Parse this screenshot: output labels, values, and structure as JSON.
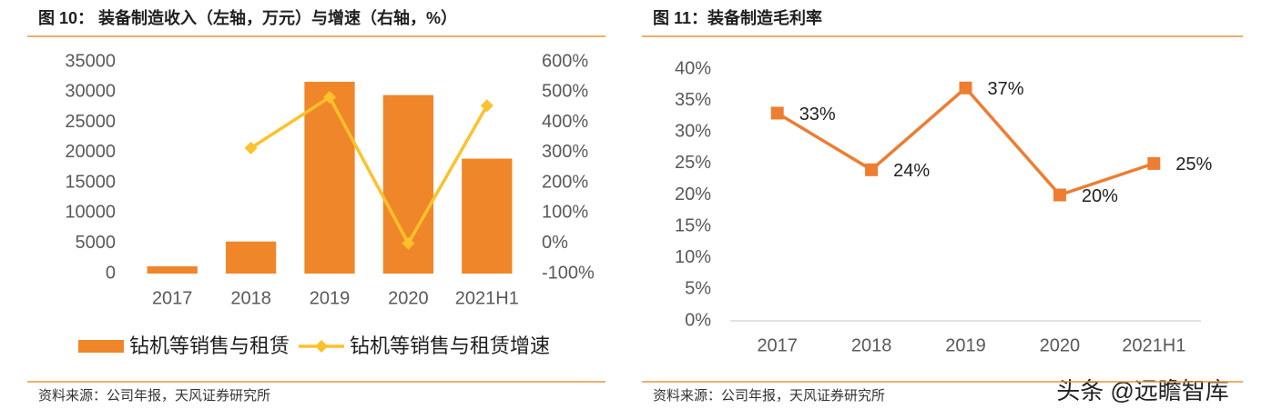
{
  "chart_data": [
    {
      "type": "combo",
      "title": "图 10： 装备制造收入（左轴，万元）与增速（右轴，%）",
      "categories": [
        "2017",
        "2018",
        "2019",
        "2020",
        "2021H1"
      ],
      "series": [
        {
          "name": "钻机等销售与租赁",
          "color": "#f0862a",
          "kind": "bar",
          "values": [
            1200,
            5300,
            31700,
            29500,
            19000
          ]
        },
        {
          "name": "钻机等销售与租赁增速",
          "color": "#fdc12b",
          "kind": "line",
          "axis": "y2",
          "values": [
            null,
            315,
            483,
            0,
            455
          ]
        }
      ],
      "ylim": [
        0,
        35000
      ],
      "yticks": [
        0,
        5000,
        10000,
        15000,
        20000,
        25000,
        30000,
        35000
      ],
      "y2lim": [
        -100,
        600
      ],
      "y2ticks": [
        {
          "value": -100,
          "label": "-100%"
        },
        {
          "value": 0,
          "label": "0%"
        },
        {
          "value": 100,
          "label": "100%"
        },
        {
          "value": 200,
          "label": "200%"
        },
        {
          "value": 300,
          "label": "300%"
        },
        {
          "value": 400,
          "label": "400%"
        },
        {
          "value": 500,
          "label": "500%"
        },
        {
          "value": 600,
          "label": "600%"
        }
      ],
      "legend": "bottom",
      "source": "资料来源：公司年报，天风证券研究所"
    },
    {
      "type": "line",
      "title": "图 11：装备制造毛利率",
      "categories": [
        "2017",
        "2018",
        "2019",
        "2020",
        "2021H1"
      ],
      "series": [
        {
          "name": "装备制造毛利率",
          "color": "#ed7d31",
          "values": [
            33,
            24,
            37,
            20,
            25
          ],
          "value_labels": [
            "33%",
            "24%",
            "37%",
            "20%",
            "25%"
          ]
        }
      ],
      "ylim": [
        0,
        40
      ],
      "yticks": [
        {
          "value": 0,
          "label": "0%"
        },
        {
          "value": 5,
          "label": "5%"
        },
        {
          "value": 10,
          "label": "10%"
        },
        {
          "value": 15,
          "label": "15%"
        },
        {
          "value": 20,
          "label": "20%"
        },
        {
          "value": 25,
          "label": "25%"
        },
        {
          "value": 30,
          "label": "30%"
        },
        {
          "value": 35,
          "label": "35%"
        },
        {
          "value": 40,
          "label": "40%"
        }
      ],
      "source": "资料来源：公司年报，天风证券研究所"
    }
  ],
  "watermark": "头条 @远瞻智库"
}
